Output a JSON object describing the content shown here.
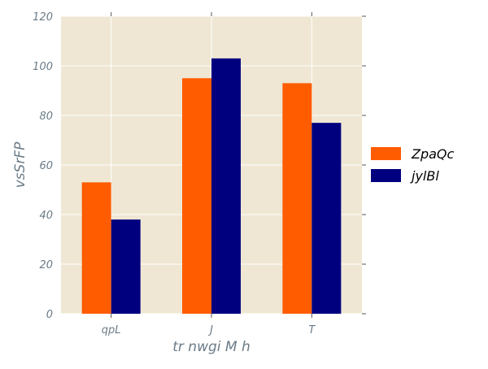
{
  "chart_data": {
    "type": "bar",
    "title": "",
    "xlabel": "tr nwgi M  h",
    "ylabel": "vsSrFP",
    "categories": [
      "qpL",
      "J",
      "T"
    ],
    "series": [
      {
        "name": "ZpaQc",
        "values": [
          53,
          95,
          93
        ]
      },
      {
        "name": "jylBl",
        "values": [
          38,
          103,
          77
        ]
      }
    ],
    "ylim": [
      0,
      120
    ],
    "yticks": [
      0,
      20,
      40,
      60,
      80,
      100,
      120
    ],
    "grid": true,
    "legend_position": "right",
    "colors": {
      "series": [
        "#ff5c00",
        "#00007f"
      ],
      "plot_background": "#efe7d3",
      "grid": "#ffffff",
      "text": "#6b7b87",
      "axis": "#555555"
    }
  }
}
